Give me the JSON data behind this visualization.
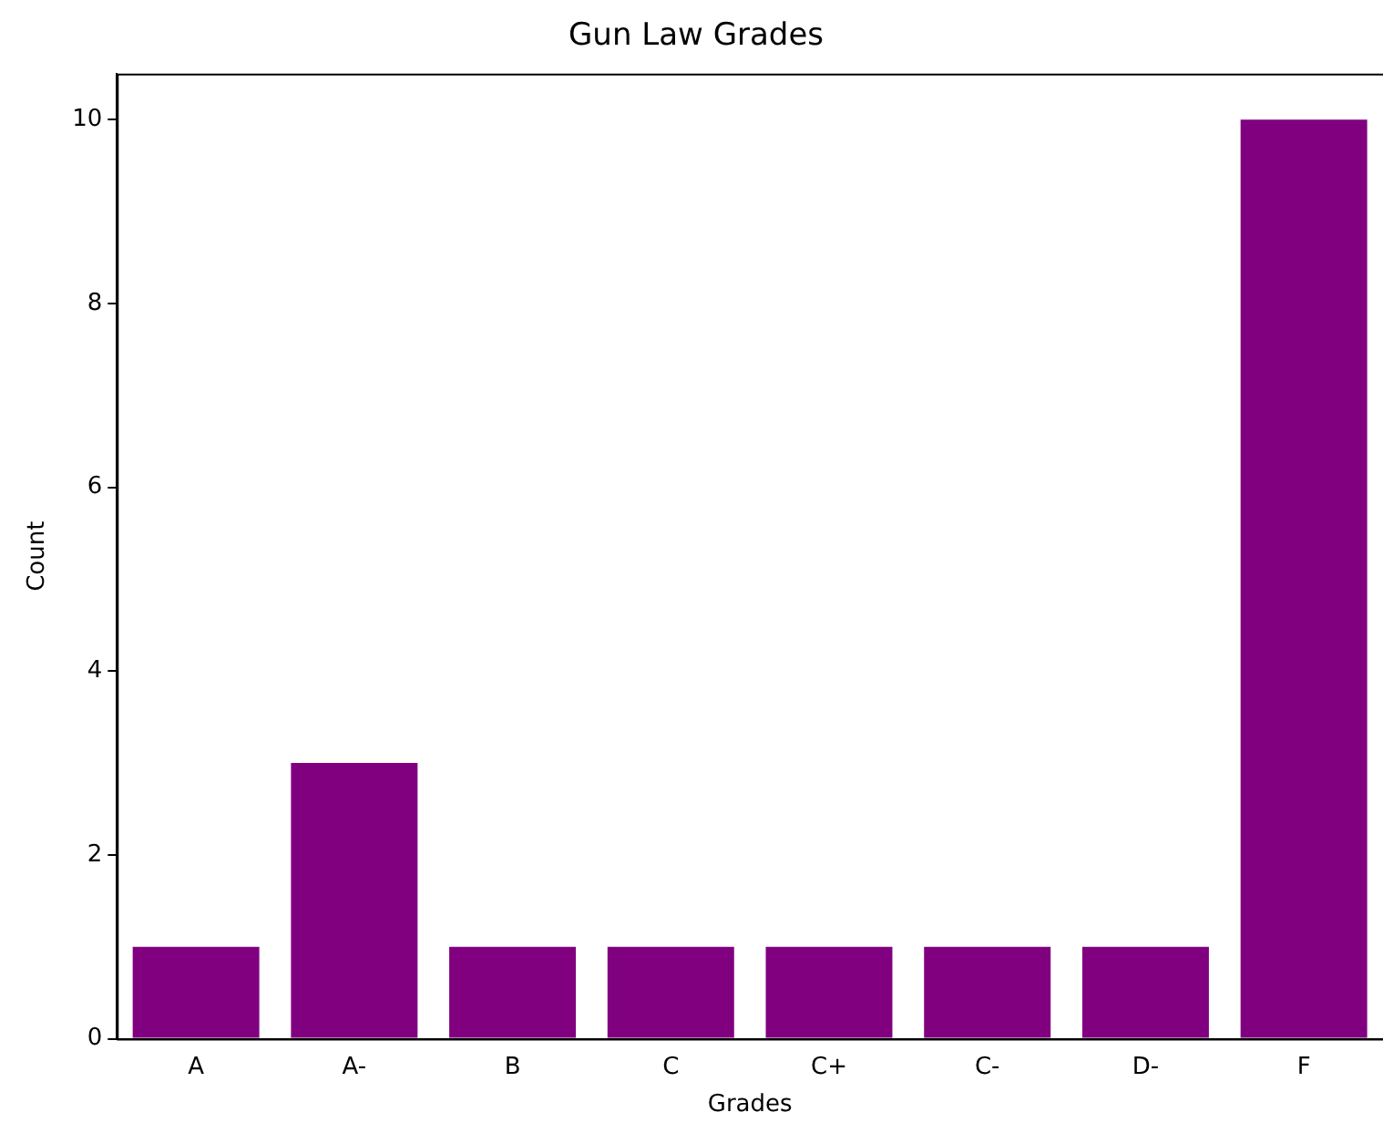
{
  "chart_data": {
    "type": "bar",
    "title": "Gun Law Grades",
    "xlabel": "Grades",
    "ylabel": "Count",
    "categories": [
      "A",
      "A-",
      "B",
      "C",
      "C+",
      "C-",
      "D-",
      "F"
    ],
    "values": [
      1,
      3,
      1,
      1,
      1,
      1,
      1,
      10
    ],
    "color": "#800080",
    "ylim": [
      0,
      10.5
    ],
    "yticks": [
      0,
      2,
      4,
      6,
      8,
      10
    ],
    "grid": false,
    "legend": false
  }
}
